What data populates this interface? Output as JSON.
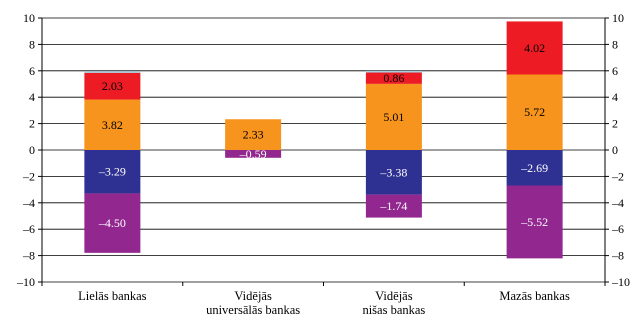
{
  "chart_data": {
    "type": "bar",
    "stacked": true,
    "categories": [
      [
        "Lielās bankas"
      ],
      [
        "Vidējās",
        "universālās bankas"
      ],
      [
        "Vidējās",
        "nišas bankas"
      ],
      [
        "Mazās bankas"
      ]
    ],
    "series": [
      {
        "color": "#2e3192",
        "text_color": "#ffffff",
        "values": [
          -3.29,
          null,
          -3.38,
          -2.69
        ]
      },
      {
        "color": "#92278f",
        "text_color": "#ffffff",
        "values": [
          -4.5,
          -0.59,
          -1.74,
          -5.52
        ]
      },
      {
        "color": "#f7941d",
        "text_color": "#000000",
        "values": [
          3.82,
          2.33,
          5.01,
          5.72
        ]
      },
      {
        "color": "#ed1c24",
        "text_color": "#000000",
        "values": [
          2.03,
          null,
          0.86,
          4.02
        ]
      },
      {
        "color": "#a7cfe0",
        "text_color": "#000000",
        "values": [
          0.12,
          null,
          0.12,
          0.0
        ]
      }
    ],
    "value_labels": {
      "0": [
        "–3.29",
        "",
        "–3.38",
        "–2.69"
      ],
      "1": [
        "–4.50",
        "–0.59",
        "–1.74",
        "–5.52"
      ],
      "2": [
        "3.82",
        "2.33",
        "5.01",
        "5.72"
      ],
      "3": [
        "2.03",
        "",
        "0.86",
        "4.02"
      ]
    },
    "ylim": [
      -10,
      10
    ],
    "yticks": [
      -10,
      -8,
      -6,
      -4,
      -2,
      0,
      2,
      4,
      6,
      8,
      10
    ],
    "ytick_labels": [
      "–10",
      "–8",
      "–6",
      "–4",
      "–2",
      "0",
      "2",
      "4",
      "6",
      "8",
      "10"
    ],
    "grid": true,
    "right_axis": true,
    "legend": "none",
    "colors": {
      "grid": "#000000",
      "axis": "#000000"
    }
  }
}
